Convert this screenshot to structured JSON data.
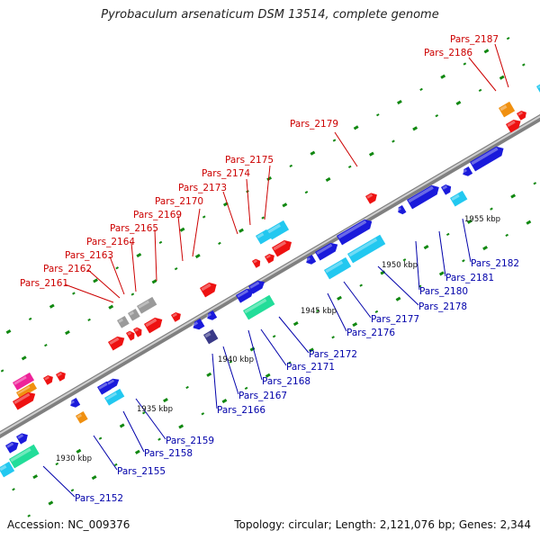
{
  "title": "Pyrobaculum arsenaticum DSM 13514, complete genome",
  "footer": {
    "accession": "Accession: NC_009376",
    "summary": "Topology: circular; Length: 2,121,076 bp; Genes: 2,344"
  },
  "colors": {
    "top_label": "#cc0000",
    "bottom_label": "#0000aa",
    "backbone": "#9a9a9a",
    "tick": "#118811"
  },
  "scale_labels": [
    "1930 kbp",
    "1935 kbp",
    "1940 kbp",
    "1945 kbp",
    "1950 kbp",
    "1955 kbp"
  ],
  "genes_top": [
    "Pars_2161",
    "Pars_2162",
    "Pars_2163",
    "Pars_2164",
    "Pars_2165",
    "Pars_2169",
    "Pars_2170",
    "Pars_2173",
    "Pars_2174",
    "Pars_2175",
    "Pars_2179",
    "Pars_2186",
    "Pars_2187"
  ],
  "genes_bottom": [
    "Pars_2152",
    "Pars_2155",
    "Pars_2158",
    "Pars_2159",
    "Pars_2166",
    "Pars_2167",
    "Pars_2168",
    "Pars_2171",
    "Pars_2172",
    "Pars_2176",
    "Pars_2177",
    "Pars_2178",
    "Pars_2180",
    "Pars_2181",
    "Pars_2182"
  ]
}
